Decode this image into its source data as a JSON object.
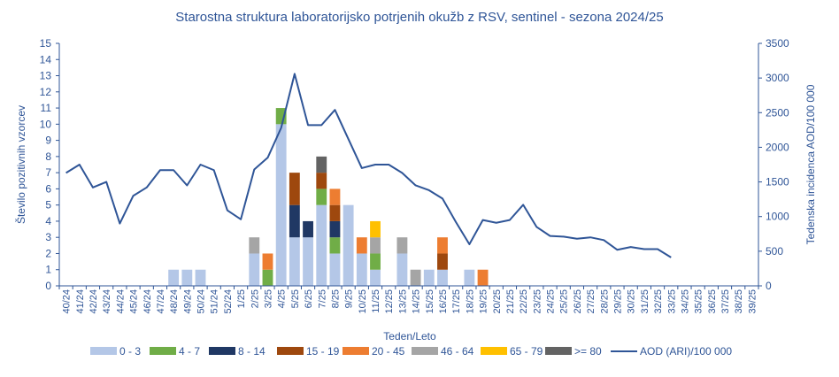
{
  "chart_data": {
    "type": "bar",
    "title": "Starostna struktura  laboratorijsko potrjenih okužb z RSV, sentinel - sezona 2024/25",
    "xlabel": "Teden/Leto",
    "ylabel": "Število pozitivnih vzorcev",
    "ylabel_right": "Tedenska incidenca AOD/100 000",
    "ylim": [
      0,
      15
    ],
    "ylim_right": [
      0,
      3500
    ],
    "yticks": [
      0,
      1,
      2,
      3,
      4,
      5,
      6,
      7,
      8,
      9,
      10,
      11,
      12,
      13,
      14,
      15
    ],
    "yticks_right": [
      0,
      500,
      1000,
      1500,
      2000,
      2500,
      3000,
      3500
    ],
    "stacked": true,
    "grid": false,
    "legend_position": "bottom",
    "categories": [
      "40/24",
      "41/24",
      "42/24",
      "43/24",
      "44/24",
      "45/24",
      "46/24",
      "47/24",
      "48/24",
      "49/24",
      "50/24",
      "51/24",
      "52/24",
      "1/25",
      "2/25",
      "3/25",
      "4/25",
      "5/25",
      "6/25",
      "7/25",
      "8/25",
      "9/25",
      "10/25",
      "11/25",
      "12/25",
      "13/25",
      "14/25",
      "15/25",
      "16/25",
      "17/25",
      "18/25",
      "19/25",
      "20/25",
      "21/25",
      "22/25",
      "23/25",
      "24/25",
      "25/25",
      "26/25",
      "27/25",
      "28/25",
      "29/25",
      "30/25",
      "31/25",
      "32/25",
      "33/25",
      "34/25",
      "35/25",
      "36/25",
      "37/25",
      "38/25",
      "39/25"
    ],
    "series": [
      {
        "name": "0 - 3",
        "color": "#b4c7e7",
        "values": [
          0,
          0,
          0,
          0,
          0,
          0,
          0,
          0,
          1,
          1,
          1,
          0,
          0,
          0,
          2,
          0,
          10,
          3,
          3,
          5,
          2,
          5,
          2,
          1,
          0,
          2,
          0,
          1,
          1,
          0,
          1,
          0,
          0,
          0,
          0,
          0,
          0,
          0,
          0,
          0,
          0,
          0,
          0,
          0,
          0,
          0,
          0,
          0,
          0,
          0,
          0,
          0
        ]
      },
      {
        "name": "4 - 7",
        "color": "#70ad47",
        "values": [
          0,
          0,
          0,
          0,
          0,
          0,
          0,
          0,
          0,
          0,
          0,
          0,
          0,
          0,
          0,
          1,
          1,
          0,
          0,
          1,
          1,
          0,
          0,
          1,
          0,
          0,
          0,
          0,
          0,
          0,
          0,
          0,
          0,
          0,
          0,
          0,
          0,
          0,
          0,
          0,
          0,
          0,
          0,
          0,
          0,
          0,
          0,
          0,
          0,
          0,
          0,
          0
        ]
      },
      {
        "name": "8 - 14",
        "color": "#203864",
        "values": [
          0,
          0,
          0,
          0,
          0,
          0,
          0,
          0,
          0,
          0,
          0,
          0,
          0,
          0,
          0,
          0,
          0,
          2,
          1,
          0,
          1,
          0,
          0,
          0,
          0,
          0,
          0,
          0,
          0,
          0,
          0,
          0,
          0,
          0,
          0,
          0,
          0,
          0,
          0,
          0,
          0,
          0,
          0,
          0,
          0,
          0,
          0,
          0,
          0,
          0,
          0,
          0
        ]
      },
      {
        "name": "15 - 19",
        "color": "#9e480e",
        "values": [
          0,
          0,
          0,
          0,
          0,
          0,
          0,
          0,
          0,
          0,
          0,
          0,
          0,
          0,
          0,
          0,
          0,
          2,
          0,
          1,
          1,
          0,
          0,
          0,
          0,
          0,
          0,
          0,
          1,
          0,
          0,
          0,
          0,
          0,
          0,
          0,
          0,
          0,
          0,
          0,
          0,
          0,
          0,
          0,
          0,
          0,
          0,
          0,
          0,
          0,
          0,
          0
        ]
      },
      {
        "name": "20 - 45",
        "color": "#ed7d31",
        "values": [
          0,
          0,
          0,
          0,
          0,
          0,
          0,
          0,
          0,
          0,
          0,
          0,
          0,
          0,
          0,
          1,
          0,
          0,
          0,
          0,
          1,
          0,
          1,
          0,
          0,
          0,
          0,
          0,
          1,
          0,
          0,
          1,
          0,
          0,
          0,
          0,
          0,
          0,
          0,
          0,
          0,
          0,
          0,
          0,
          0,
          0,
          0,
          0,
          0,
          0,
          0,
          0
        ]
      },
      {
        "name": "46 - 64",
        "color": "#a5a5a5",
        "values": [
          0,
          0,
          0,
          0,
          0,
          0,
          0,
          0,
          0,
          0,
          0,
          0,
          0,
          0,
          1,
          0,
          0,
          0,
          0,
          0,
          0,
          0,
          0,
          1,
          0,
          1,
          1,
          0,
          0,
          0,
          0,
          0,
          0,
          0,
          0,
          0,
          0,
          0,
          0,
          0,
          0,
          0,
          0,
          0,
          0,
          0,
          0,
          0,
          0,
          0,
          0,
          0
        ]
      },
      {
        "name": "65 - 79",
        "color": "#ffc000",
        "values": [
          0,
          0,
          0,
          0,
          0,
          0,
          0,
          0,
          0,
          0,
          0,
          0,
          0,
          0,
          0,
          0,
          0,
          0,
          0,
          0,
          0,
          0,
          0,
          1,
          0,
          0,
          0,
          0,
          0,
          0,
          0,
          0,
          0,
          0,
          0,
          0,
          0,
          0,
          0,
          0,
          0,
          0,
          0,
          0,
          0,
          0,
          0,
          0,
          0,
          0,
          0,
          0
        ]
      },
      {
        "name": ">= 80",
        "color": "#636363",
        "values": [
          0,
          0,
          0,
          0,
          0,
          0,
          0,
          0,
          0,
          0,
          0,
          0,
          0,
          0,
          0,
          0,
          0,
          0,
          0,
          1,
          0,
          0,
          0,
          0,
          0,
          0,
          0,
          0,
          0,
          0,
          0,
          0,
          0,
          0,
          0,
          0,
          0,
          0,
          0,
          0,
          0,
          0,
          0,
          0,
          0,
          0,
          0,
          0,
          0,
          0,
          0,
          0
        ]
      }
    ],
    "line_series": {
      "name": "AOD (ARI)/100 000",
      "color": "#2f5597",
      "axis": "right",
      "values": [
        1630,
        1750,
        1420,
        1500,
        900,
        1300,
        1420,
        1670,
        1670,
        1450,
        1750,
        1670,
        1090,
        960,
        1680,
        1850,
        2280,
        3060,
        2320,
        2320,
        2540,
        2120,
        1700,
        1750,
        1750,
        1630,
        1450,
        1380,
        1260,
        920,
        600,
        950,
        910,
        950,
        1170,
        850,
        720,
        710,
        680,
        700,
        660,
        520,
        560,
        530,
        530,
        410,
        null,
        null,
        null,
        null,
        null,
        null
      ]
    }
  }
}
